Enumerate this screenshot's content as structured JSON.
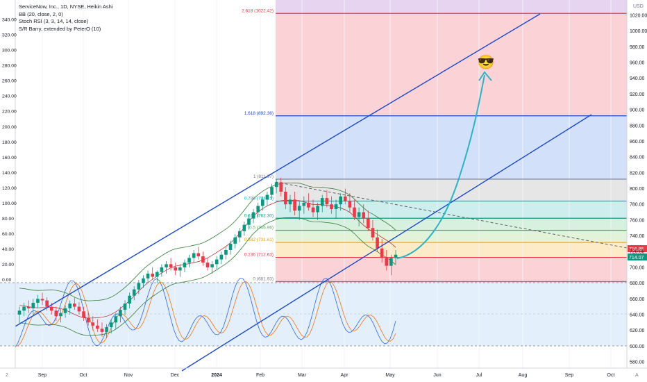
{
  "legend": {
    "title": "ServiceNow, Inc., 1D, NYSE, Heikin Ashi",
    "bb": "BB (20, close, 2, 0)",
    "stoch": "Stoch RSI (3, 3, 14, 14, close)",
    "sr": "S/R Barry, extended by PeterO (10)"
  },
  "currency": "USD",
  "bottom_left_label": "2",
  "bottom_right_label": "A",
  "emoji": "😎",
  "colors": {
    "up": "#089981",
    "down": "#f23645",
    "bb": "#2e7d32",
    "bb_fill": "#2e7d3222",
    "channel": "#1848cc",
    "arrow": "#26b4c8",
    "price_tag": "#089981",
    "price_tag2": "#f23645"
  },
  "chart_data": {
    "type": "candlestick",
    "x_ticks": [
      "Sep",
      "Oct",
      "Nov",
      "Dec",
      "2024",
      "Feb",
      "Mar",
      "Apr",
      "May",
      "Jun",
      "Jul",
      "Aug",
      "Sep",
      "Oct"
    ],
    "y_left_ticks": [
      "340.00",
      "320.00",
      "300.00",
      "280.00",
      "260.00",
      "240.00",
      "220.00",
      "200.00",
      "180.00",
      "160.00",
      "140.00",
      "120.00",
      "100.00",
      "80.00",
      "60.00",
      "40.00",
      "20.00",
      "0.00"
    ],
    "y_right_ticks": [
      "1020.00",
      "1000.00",
      "980.00",
      "960.00",
      "940.00",
      "920.00",
      "900.00",
      "880.00",
      "860.00",
      "840.00",
      "820.00",
      "800.00",
      "780.00",
      "760.00",
      "740.00",
      "720.00",
      "700.00",
      "680.00",
      "660.00",
      "640.00",
      "620.00",
      "600.00",
      "580.00"
    ],
    "price_range": [
      575,
      1040
    ],
    "last_price_labels": [
      "716.85",
      "714.07"
    ],
    "fib_levels": [
      {
        "label": "2.618 (1022.42)",
        "value": 1022.42,
        "color": "#f23645"
      },
      {
        "label": "1.618 (892.36)",
        "value": 892.36,
        "color": "#1848cc"
      },
      {
        "label": "1 (811.97)",
        "value": 811.97,
        "color": "#787b86"
      },
      {
        "label": "0.786 (784.15)",
        "value": 784.15,
        "color": "#00bcd4"
      },
      {
        "label": "0.618 (762.30)",
        "value": 762.3,
        "color": "#089981"
      },
      {
        "label": "0.5 (746.96)",
        "value": 746.96,
        "color": "#4caf50"
      },
      {
        "label": "0.382 (731.61)",
        "value": 731.61,
        "color": "#ff9800"
      },
      {
        "label": "0.236 (712.63)",
        "value": 712.63,
        "color": "#f23645"
      },
      {
        "label": "0 (681.93)",
        "value": 681.93,
        "color": "#787b86"
      }
    ],
    "candles": [
      [
        640,
        650,
        630,
        645
      ],
      [
        645,
        655,
        638,
        650
      ],
      [
        650,
        658,
        642,
        648
      ],
      [
        648,
        660,
        640,
        655
      ],
      [
        655,
        665,
        648,
        660
      ],
      [
        660,
        668,
        652,
        658
      ],
      [
        658,
        662,
        645,
        650
      ],
      [
        650,
        655,
        640,
        645
      ],
      [
        645,
        650,
        632,
        638
      ],
      [
        638,
        648,
        630,
        642
      ],
      [
        642,
        652,
        636,
        648
      ],
      [
        648,
        658,
        640,
        654
      ],
      [
        654,
        662,
        646,
        650
      ],
      [
        650,
        656,
        640,
        644
      ],
      [
        644,
        650,
        632,
        636
      ],
      [
        636,
        644,
        626,
        630
      ],
      [
        630,
        638,
        620,
        626
      ],
      [
        626,
        634,
        618,
        622
      ],
      [
        622,
        630,
        612,
        618
      ],
      [
        618,
        628,
        610,
        624
      ],
      [
        624,
        634,
        616,
        630
      ],
      [
        630,
        642,
        622,
        638
      ],
      [
        638,
        650,
        630,
        646
      ],
      [
        646,
        658,
        640,
        654
      ],
      [
        654,
        668,
        648,
        664
      ],
      [
        664,
        676,
        658,
        672
      ],
      [
        672,
        684,
        666,
        680
      ],
      [
        680,
        690,
        674,
        686
      ],
      [
        686,
        696,
        680,
        692
      ],
      [
        692,
        700,
        684,
        688
      ],
      [
        688,
        696,
        680,
        694
      ],
      [
        694,
        704,
        688,
        700
      ],
      [
        700,
        708,
        692,
        704
      ],
      [
        704,
        712,
        696,
        700
      ],
      [
        700,
        706,
        690,
        696
      ],
      [
        696,
        704,
        688,
        700
      ],
      [
        700,
        710,
        694,
        706
      ],
      [
        706,
        716,
        700,
        712
      ],
      [
        712,
        722,
        706,
        718
      ],
      [
        718,
        726,
        710,
        714
      ],
      [
        714,
        720,
        702,
        706
      ],
      [
        706,
        712,
        696,
        700
      ],
      [
        700,
        708,
        692,
        704
      ],
      [
        704,
        714,
        698,
        710
      ],
      [
        710,
        720,
        704,
        716
      ],
      [
        716,
        726,
        710,
        722
      ],
      [
        722,
        734,
        716,
        730
      ],
      [
        730,
        742,
        724,
        738
      ],
      [
        738,
        750,
        732,
        746
      ],
      [
        746,
        758,
        740,
        754
      ],
      [
        754,
        766,
        748,
        762
      ],
      [
        762,
        774,
        756,
        770
      ],
      [
        770,
        782,
        764,
        778
      ],
      [
        778,
        790,
        772,
        786
      ],
      [
        786,
        796,
        778,
        792
      ],
      [
        792,
        806,
        786,
        802
      ],
      [
        802,
        812,
        794,
        808
      ],
      [
        808,
        814,
        790,
        796
      ],
      [
        796,
        802,
        774,
        780
      ],
      [
        780,
        792,
        770,
        786
      ],
      [
        786,
        796,
        766,
        772
      ],
      [
        772,
        784,
        760,
        778
      ],
      [
        778,
        790,
        768,
        782
      ],
      [
        782,
        794,
        772,
        776
      ],
      [
        776,
        786,
        764,
        770
      ],
      [
        770,
        782,
        760,
        778
      ],
      [
        778,
        792,
        770,
        788
      ],
      [
        788,
        798,
        776,
        780
      ],
      [
        780,
        790,
        768,
        774
      ],
      [
        774,
        786,
        762,
        780
      ],
      [
        780,
        794,
        772,
        790
      ],
      [
        790,
        800,
        780,
        784
      ],
      [
        784,
        794,
        770,
        776
      ],
      [
        776,
        786,
        760,
        764
      ],
      [
        764,
        776,
        752,
        770
      ],
      [
        770,
        780,
        756,
        762
      ],
      [
        762,
        772,
        746,
        750
      ],
      [
        750,
        760,
        734,
        738
      ],
      [
        738,
        748,
        720,
        724
      ],
      [
        724,
        736,
        706,
        712
      ],
      [
        712,
        722,
        696,
        702
      ],
      [
        702,
        716,
        690,
        712
      ],
      [
        712,
        722,
        704,
        716
      ]
    ]
  }
}
